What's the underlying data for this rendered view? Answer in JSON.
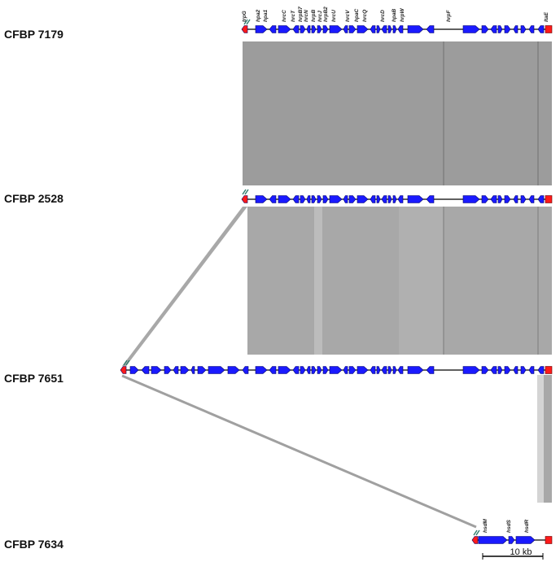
{
  "colors": {
    "gene": "#1a1aff",
    "gene_outline": "#000066",
    "flank_gene": "#ff1a1a",
    "backbone": "#000000",
    "homology_dark": "#9c9c9c",
    "homology_mid": "#a8a8a8",
    "homology_light": "#bcbcbc",
    "homology_faint": "#d4d4d4",
    "link_line": "#a0a0a0",
    "break_mark": "#2e7d6e"
  },
  "strains": [
    {
      "label": "CFBP 7179"
    },
    {
      "label": "CFBP 2528"
    },
    {
      "label": "CFBP 7651"
    },
    {
      "label": "CFBP 7634"
    }
  ],
  "gene_labels_top": [
    "trpG",
    "hpa2",
    "hpa1",
    "hrcC",
    "hrcT",
    "hrpB7",
    "hrcN",
    "hrpB",
    "hrcJ",
    "hrpB2",
    "hrcU",
    "hrcV",
    "hpaC",
    "hrcQ",
    "hrcD",
    "hpaB",
    "hrpW",
    "hrpF",
    "ltaE"
  ],
  "gene_labels_bottom": [
    "hsdM",
    "hsdS",
    "hsdR"
  ],
  "scale_bar": {
    "label": "10 kb"
  }
}
